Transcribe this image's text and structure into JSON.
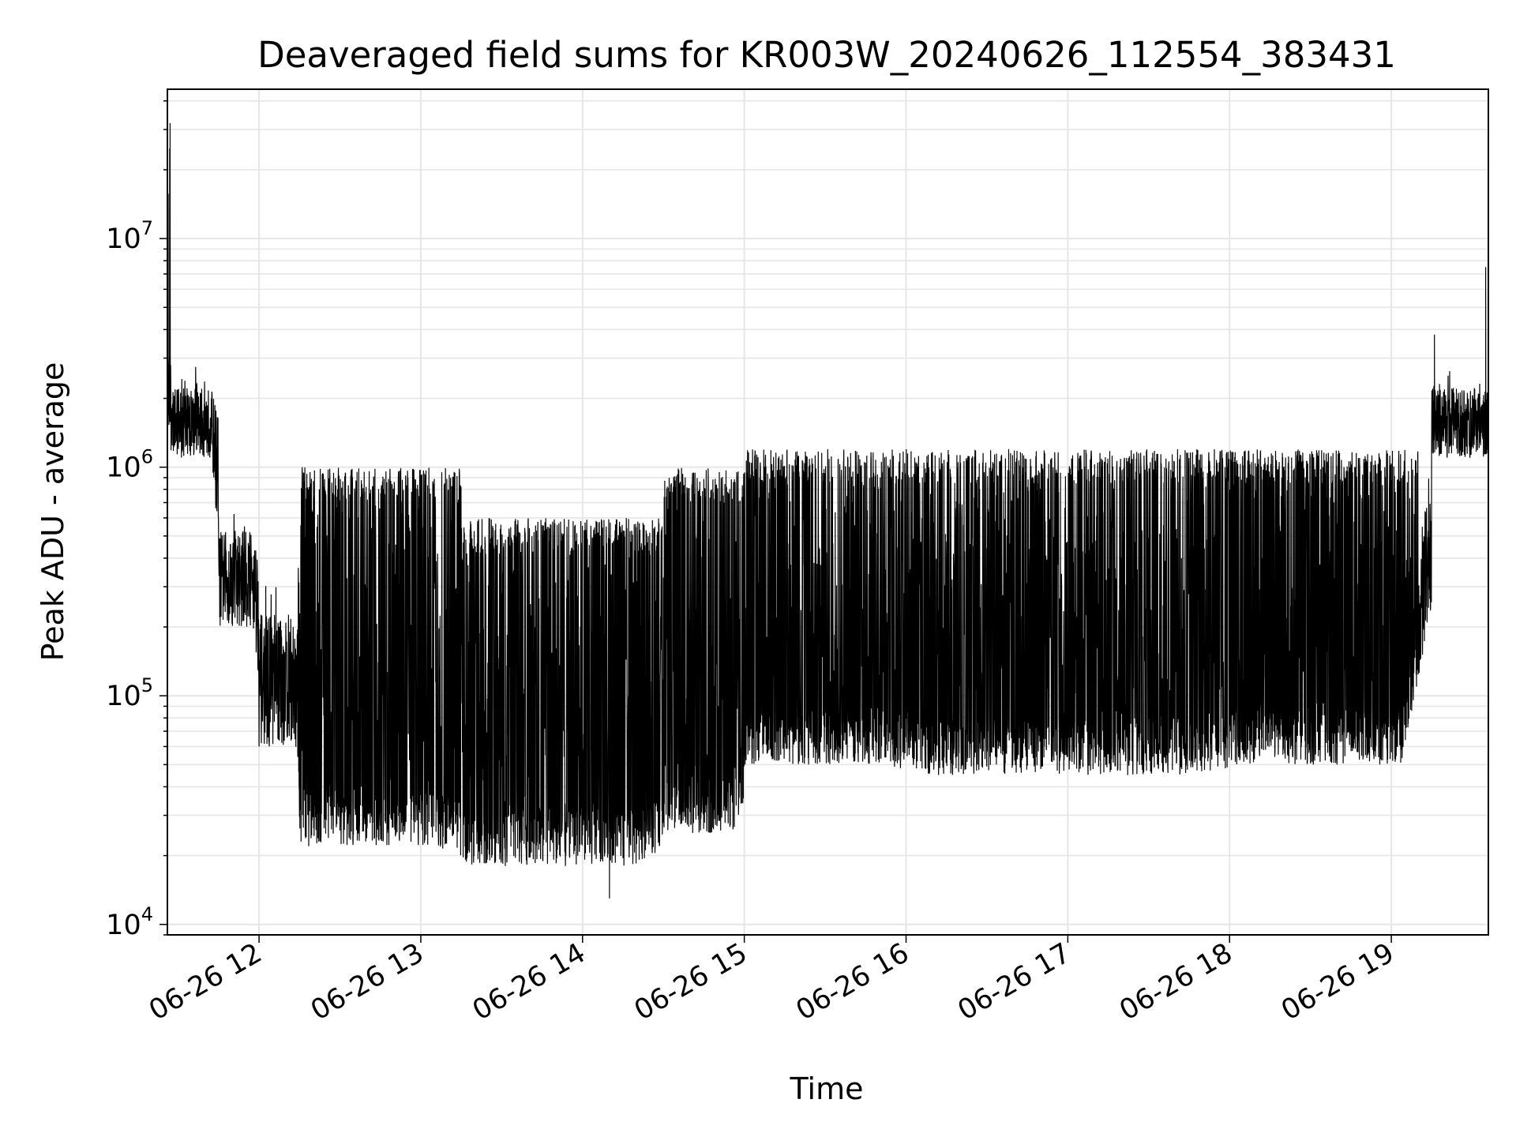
{
  "chart_data": {
    "type": "line",
    "title": "Deaveraged field sums for KR003W_20240626_112554_383431",
    "xlabel": "Time",
    "ylabel": "Peak ADU - average",
    "yscale": "log",
    "ylim": [
      9000,
      45000000
    ],
    "xlim": [
      "06-26 11:26",
      "06-26 19:36"
    ],
    "grid": true,
    "line_color": "#000000",
    "grid_color": "#e6e6e6",
    "x_ticks": [
      "06-26 12",
      "06-26 13",
      "06-26 14",
      "06-26 15",
      "06-26 16",
      "06-26 17",
      "06-26 18",
      "06-26 19"
    ],
    "y_ticks": [
      {
        "base": "10",
        "exp": "4"
      },
      {
        "base": "10",
        "exp": "5"
      },
      {
        "base": "10",
        "exp": "6"
      },
      {
        "base": "10",
        "exp": "7"
      }
    ],
    "segments": [
      {
        "start": "06-26 11:26",
        "end": "06-26 11:27",
        "floor": 1500000,
        "top": 30000000
      },
      {
        "start": "06-26 11:27",
        "end": "06-26 11:45",
        "floor": 1100000,
        "top": 3000000
      },
      {
        "start": "06-26 11:45",
        "end": "06-26 12:00",
        "floor": 200000,
        "top": 800000
      },
      {
        "start": "06-26 12:00",
        "end": "06-26 12:15",
        "floor": 60000,
        "top": 400000
      },
      {
        "start": "06-26 12:15",
        "end": "06-26 13:15",
        "floor": 22000,
        "top": 1000000
      },
      {
        "start": "06-26 13:15",
        "end": "06-26 14:30",
        "floor": 18000,
        "top": 600000
      },
      {
        "start": "06-26 14:30",
        "end": "06-26 15:00",
        "floor": 25000,
        "top": 1000000
      },
      {
        "start": "06-26 15:00",
        "end": "06-26 16:00",
        "floor": 50000,
        "top": 1200000
      },
      {
        "start": "06-26 16:00",
        "end": "06-26 18:00",
        "floor": 45000,
        "top": 1200000
      },
      {
        "start": "06-26 18:00",
        "end": "06-26 19:15",
        "floor": 50000,
        "top": 1200000
      },
      {
        "start": "06-26 19:15",
        "end": "06-26 19:36",
        "floor": 1100000,
        "top": 3000000
      }
    ],
    "peaks": [
      {
        "x": "06-26 11:27",
        "y": 32000000
      },
      {
        "x": "06-26 19:16",
        "y": 3800000
      },
      {
        "x": "06-26 19:35",
        "y": 7500000
      }
    ],
    "minimum": {
      "x": "06-26 14:10",
      "y": 13000
    }
  }
}
